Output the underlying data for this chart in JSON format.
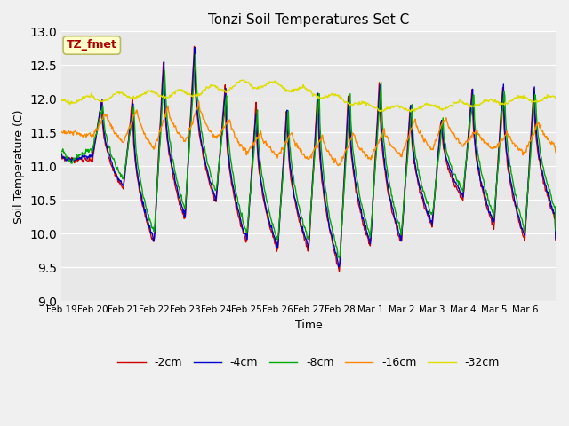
{
  "title": "Tonzi Soil Temperatures Set C",
  "xlabel": "Time",
  "ylabel": "Soil Temperature (C)",
  "ylim": [
    9.0,
    13.0
  ],
  "yticks": [
    9.0,
    9.5,
    10.0,
    10.5,
    11.0,
    11.5,
    12.0,
    12.5,
    13.0
  ],
  "xtick_labels": [
    "Feb 19",
    "Feb 20",
    "Feb 21",
    "Feb 22",
    "Feb 23",
    "Feb 24",
    "Feb 25",
    "Feb 26",
    "Feb 27",
    "Feb 28",
    "Mar 1",
    "Mar 2",
    "Mar 3",
    "Mar 4",
    "Mar 5",
    "Mar 6"
  ],
  "legend_labels": [
    "-2cm",
    "-4cm",
    "-8cm",
    "-16cm",
    "-32cm"
  ],
  "line_colors": [
    "#cc0000",
    "#0000cc",
    "#00aa00",
    "#ff8800",
    "#dddd00"
  ],
  "bg_color": "#e8e8e8",
  "fig_bg_color": "#f0f0f0",
  "annotation_text": "TZ_fmet",
  "annotation_color": "#aa0000",
  "annotation_bg": "#ffffcc",
  "annotation_border": "#bbbb66"
}
